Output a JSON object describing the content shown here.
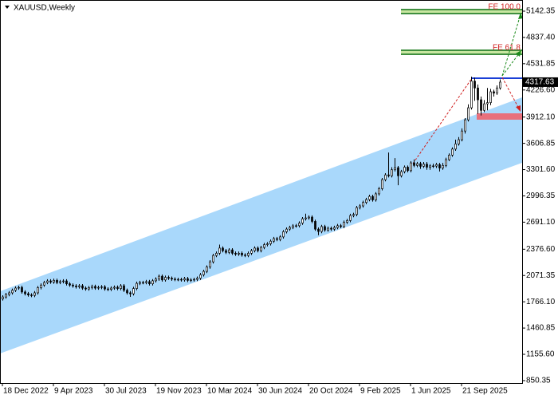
{
  "chart_data": {
    "type": "candlestick",
    "title": "XAUUSD,Weekly",
    "annotations": [
      "FE 100.0",
      "FE 61.8"
    ],
    "current_price": 4317.63,
    "categories": [
      "18 Dec 2022",
      null,
      null,
      null,
      null,
      null,
      null,
      null,
      null,
      null,
      null,
      null,
      null,
      null,
      null,
      null,
      "9 Apr 2023",
      null,
      null,
      null,
      null,
      null,
      null,
      null,
      null,
      null,
      null,
      null,
      null,
      null,
      null,
      null,
      "30 Jul 2023",
      null,
      null,
      null,
      null,
      null,
      null,
      null,
      null,
      null,
      null,
      null,
      null,
      null,
      null,
      null,
      "19 Nov 2023",
      null,
      null,
      null,
      null,
      null,
      null,
      null,
      null,
      null,
      null,
      null,
      null,
      null,
      null,
      null,
      "10 Mar 2024",
      null,
      null,
      null,
      null,
      null,
      null,
      null,
      null,
      null,
      null,
      null,
      null,
      null,
      null,
      null,
      "30 Jun 2024",
      null,
      null,
      null,
      null,
      null,
      null,
      null,
      null,
      null,
      null,
      null,
      null,
      null,
      null,
      null,
      "20 Oct 2024",
      null,
      null,
      null,
      null,
      null,
      null,
      null,
      null,
      null,
      null,
      null,
      null,
      null,
      null,
      null,
      "9 Feb 2025",
      null,
      null,
      null,
      null,
      null,
      null,
      null,
      null,
      null,
      null,
      null,
      null,
      null,
      null,
      null,
      "1 Jun 2025",
      null,
      null,
      null,
      null,
      null,
      null,
      null,
      null,
      null,
      null,
      null,
      null,
      null,
      null,
      null,
      "21 Sep 2025",
      null,
      null,
      null,
      null,
      null,
      null,
      null,
      null,
      null,
      null,
      null,
      null
    ],
    "open": [
      1800,
      1822,
      1850,
      1870,
      1900,
      1925,
      1933,
      1880,
      1860,
      1845,
      1840,
      1870,
      1930,
      1960,
      1990,
      2008,
      1995,
      2015,
      1990,
      2000,
      2008,
      1975,
      1960,
      1950,
      1940,
      1952,
      1925,
      1915,
      1930,
      1945,
      1925,
      1933,
      1940,
      1915,
      1910,
      1925,
      1935,
      1920,
      1952,
      1900,
      1870,
      1859,
      1920,
      1980,
      1990,
      1989,
      2000,
      1975,
      2010,
      2030,
      2063,
      2020,
      2050,
      2040,
      2030,
      2025,
      2026,
      2020,
      2035,
      2015,
      2020,
      2026,
      2040,
      2080,
      2119,
      2170,
      2230,
      2304,
      2330,
      2390,
      2360,
      2340,
      2369,
      2330,
      2320,
      2330,
      2310,
      2304,
      2330,
      2360,
      2390,
      2360,
      2397,
      2430,
      2440,
      2470,
      2500,
      2490,
      2520,
      2580,
      2610,
      2630,
      2648,
      2650,
      2680,
      2730,
      2740,
      2750,
      2700,
      2610,
      2583,
      2640,
      2600,
      2620,
      2610,
      2629,
      2650,
      2640,
      2690,
      2710,
      2768,
      2780,
      2860,
      2880,
      2920,
      2954,
      2990,
      2950,
      3020,
      3080,
      3185,
      3240,
      3230,
      3300,
      3324,
      3230,
      3278,
      3330,
      3290,
      3380,
      3350,
      3371,
      3340,
      3365,
      3330,
      3345,
      3343,
      3360,
      3320,
      3350,
      3417,
      3470,
      3540,
      3600,
      3649,
      3750,
      3880,
      4020,
      4330,
      4250,
      4113,
      3990,
      4066,
      4080,
      4206,
      4190,
      4250
    ],
    "high": [
      1842,
      1870,
      1890,
      1920,
      1945,
      1953,
      1953,
      1900,
      1880,
      1865,
      1890,
      1950,
      1980,
      2010,
      2028,
      2028,
      2035,
      2035,
      2020,
      2028,
      2028,
      1995,
      1980,
      1970,
      1972,
      1972,
      1945,
      1950,
      1965,
      1965,
      1953,
      1960,
      1960,
      1935,
      1945,
      1955,
      1955,
      1972,
      1972,
      1920,
      1890,
      1940,
      2000,
      2010,
      2010,
      2020,
      2020,
      2030,
      2050,
      2083,
      2083,
      2070,
      2070,
      2060,
      2050,
      2046,
      2046,
      2055,
      2055,
      2040,
      2046,
      2060,
      2100,
      2139,
      2190,
      2250,
      2324,
      2350,
      2431,
      2410,
      2380,
      2389,
      2389,
      2350,
      2350,
      2350,
      2330,
      2350,
      2380,
      2410,
      2410,
      2417,
      2450,
      2460,
      2490,
      2520,
      2520,
      2540,
      2600,
      2630,
      2650,
      2668,
      2670,
      2700,
      2750,
      2790,
      2770,
      2770,
      2720,
      2630,
      2660,
      2660,
      2640,
      2640,
      2649,
      2670,
      2670,
      2710,
      2730,
      2788,
      2800,
      2880,
      2900,
      2940,
      2974,
      3010,
      3010,
      3040,
      3100,
      3205,
      3260,
      3500,
      3330,
      3435,
      3344,
      3298,
      3350,
      3350,
      3400,
      3420,
      3391,
      3391,
      3390,
      3390,
      3365,
      3370,
      3380,
      3380,
      3380,
      3440,
      3490,
      3560,
      3650,
      3680,
      3780,
      3900,
      4060,
      4381,
      4370,
      4290,
      4150,
      4110,
      4250,
      4240,
      4230,
      4280,
      4350
    ],
    "low": [
      1780,
      1802,
      1830,
      1850,
      1880,
      1905,
      1860,
      1840,
      1825,
      1820,
      1820,
      1850,
      1910,
      1940,
      1970,
      1975,
      1975,
      1970,
      1970,
      1980,
      1955,
      1940,
      1930,
      1920,
      1920,
      1905,
      1895,
      1895,
      1910,
      1905,
      1905,
      1913,
      1895,
      1890,
      1890,
      1905,
      1900,
      1900,
      1880,
      1850,
      1823,
      1839,
      1900,
      1960,
      1969,
      1969,
      1955,
      1955,
      1990,
      2010,
      2000,
      2000,
      2020,
      2010,
      2005,
      2005,
      2000,
      2000,
      1995,
      1995,
      2000,
      2006,
      2020,
      2060,
      2099,
      2150,
      2210,
      2284,
      2310,
      2340,
      2320,
      2320,
      2310,
      2300,
      2300,
      2290,
      2284,
      2284,
      2310,
      2340,
      2340,
      2340,
      2377,
      2410,
      2420,
      2450,
      2470,
      2470,
      2500,
      2560,
      2590,
      2610,
      2628,
      2630,
      2660,
      2710,
      2720,
      2680,
      2590,
      2540,
      2563,
      2580,
      2580,
      2590,
      2590,
      2609,
      2620,
      2620,
      2670,
      2690,
      2748,
      2760,
      2840,
      2860,
      2900,
      2934,
      2930,
      2930,
      3000,
      3060,
      3165,
      3210,
      3210,
      3280,
      3120,
      3210,
      3258,
      3270,
      3270,
      3330,
      3330,
      3310,
      3320,
      3300,
      3300,
      3320,
      3320,
      3280,
      3300,
      3330,
      3400,
      3450,
      3520,
      3580,
      3630,
      3720,
      3860,
      4000,
      4100,
      3950,
      3930,
      3970,
      3990,
      4050,
      4150,
      4170,
      4230
    ],
    "close": [
      1822,
      1850,
      1870,
      1900,
      1925,
      1933,
      1880,
      1860,
      1845,
      1840,
      1870,
      1930,
      1960,
      1990,
      2008,
      1995,
      2015,
      1990,
      2000,
      2008,
      1975,
      1960,
      1950,
      1940,
      1952,
      1925,
      1915,
      1930,
      1945,
      1925,
      1933,
      1940,
      1915,
      1910,
      1925,
      1935,
      1920,
      1952,
      1900,
      1870,
      1859,
      1920,
      1980,
      1990,
      1989,
      2000,
      1975,
      2010,
      2030,
      2063,
      2020,
      2050,
      2040,
      2030,
      2025,
      2026,
      2020,
      2035,
      2015,
      2020,
      2026,
      2040,
      2080,
      2119,
      2170,
      2230,
      2304,
      2330,
      2390,
      2360,
      2340,
      2369,
      2330,
      2320,
      2330,
      2310,
      2304,
      2330,
      2360,
      2390,
      2360,
      2397,
      2430,
      2440,
      2470,
      2500,
      2490,
      2520,
      2580,
      2610,
      2630,
      2648,
      2650,
      2680,
      2730,
      2740,
      2750,
      2700,
      2610,
      2583,
      2640,
      2600,
      2620,
      2610,
      2629,
      2650,
      2640,
      2690,
      2710,
      2768,
      2780,
      2860,
      2880,
      2920,
      2954,
      2990,
      2950,
      3020,
      3080,
      3185,
      3240,
      3230,
      3300,
      3324,
      3230,
      3278,
      3330,
      3290,
      3380,
      3350,
      3371,
      3340,
      3365,
      3330,
      3345,
      3343,
      3360,
      3320,
      3350,
      3417,
      3470,
      3540,
      3600,
      3649,
      3750,
      3880,
      4020,
      4330,
      4250,
      4113,
      3990,
      4066,
      4080,
      4206,
      4190,
      4250,
      4317.63
    ],
    "ylim": [
      822,
      5272
    ],
    "yticks": [
      5142.35,
      {
        "value": 4837.4,
        "label": "4837.40"
      },
      4531.85,
      {
        "value": 4226.6,
        "label": "4226.60"
      },
      {
        "value": 3912.1,
        "label": "3912.10"
      },
      3606.85,
      {
        "value": 3301.6,
        "label": "3301.60"
      },
      2996.35,
      {
        "value": 2691.1,
        "label": "2691.10"
      },
      {
        "value": 2376.6,
        "label": "2376.60"
      },
      2071.35,
      {
        "value": 1766.1,
        "label": "1766.10"
      },
      1460.85,
      {
        "value": 1155.6,
        "label": "1155.60"
      },
      850.35
    ],
    "bull_color": "#ffffff",
    "bear_color": "#000000",
    "outline_color": "#000000"
  }
}
